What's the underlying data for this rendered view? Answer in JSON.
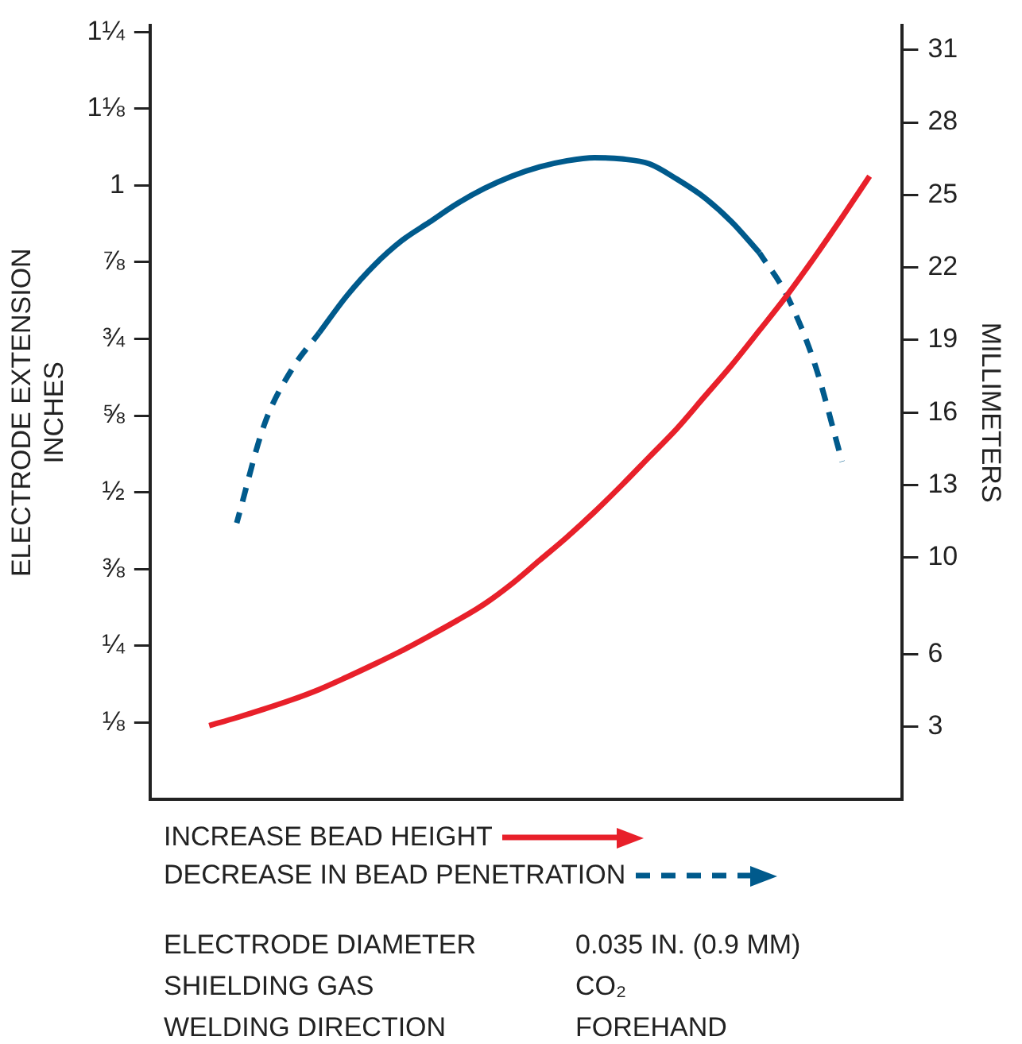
{
  "chart_data": {
    "type": "line",
    "ylabel": "ELECTRODE EXTENSION\nINCHES",
    "y2label": "MILLIMETERS",
    "categories": [
      null,
      null,
      null,
      null,
      null,
      null,
      null,
      null,
      null,
      null,
      null,
      null,
      null,
      null,
      null,
      null,
      null,
      null,
      null,
      null,
      null,
      null,
      null,
      null,
      null
    ],
    "series": [
      {
        "name": "INCREASE BEAD HEIGHT",
        "color": "#e8202a",
        "line_style": "solid",
        "values": [
          0.12,
          0.133,
          0.147,
          0.162,
          0.179,
          0.199,
          0.22,
          0.242,
          0.266,
          0.291,
          0.318,
          0.351,
          0.389,
          0.427,
          0.468,
          0.512,
          0.558,
          0.604,
          0.656,
          0.708,
          0.764,
          0.821,
          0.883,
          0.948,
          1.015
        ]
      },
      {
        "name": "DECREASE IN BEAD PENETRATION",
        "color": "#005a8c",
        "line_style": "dashed",
        "values": [
          null,
          0.45,
          0.61,
          0.7,
          0.76,
          null,
          null,
          null,
          null,
          null,
          null,
          null,
          null,
          null,
          null,
          null,
          null,
          null,
          null,
          null,
          null,
          null,
          null,
          null,
          null
        ]
      },
      {
        "color": "#005a8c",
        "line_style": "solid",
        "values": [
          null,
          null,
          null,
          null,
          0.76,
          0.82,
          0.87,
          0.91,
          0.94,
          0.97,
          0.995,
          1.015,
          1.03,
          1.04,
          1.045,
          1.043,
          1.035,
          1.01,
          0.98,
          0.94,
          0.89,
          null,
          null,
          null,
          null
        ]
      },
      {
        "color": "#005a8c",
        "line_style": "dashed",
        "values": [
          null,
          null,
          null,
          null,
          null,
          null,
          null,
          null,
          null,
          null,
          null,
          null,
          null,
          null,
          null,
          null,
          null,
          null,
          null,
          null,
          0.89,
          0.82,
          0.71,
          0.55,
          null
        ]
      }
    ],
    "ylim": [
      0,
      1.26
    ],
    "yticks": [
      {
        "value": 0.125,
        "label": "⅛"
      },
      {
        "value": 0.25,
        "label": "¼"
      },
      {
        "value": 0.375,
        "label": "⅜"
      },
      {
        "value": 0.5,
        "label": "½"
      },
      {
        "value": 0.625,
        "label": "⅝"
      },
      {
        "value": 0.75,
        "label": "¾"
      },
      {
        "value": 0.875,
        "label": "⅞"
      },
      1,
      {
        "value": 1.125,
        "label": "1⅛"
      },
      {
        "value": 1.25,
        "label": "1¼"
      }
    ],
    "y2lim": [
      0,
      32
    ],
    "y2ticks": [
      3,
      6,
      10,
      13,
      16,
      19,
      22,
      25,
      28,
      31
    ],
    "tick_labels": "y",
    "grid": false,
    "legend": "bottom",
    "marker": "none",
    "annotations": [
      "ELECTRODE DIAMETER",
      "0.035 IN. (0.9 MM)",
      "SHIELDING GAS",
      "CO₂",
      "WELDING DIRECTION",
      "FOREHAND"
    ]
  }
}
